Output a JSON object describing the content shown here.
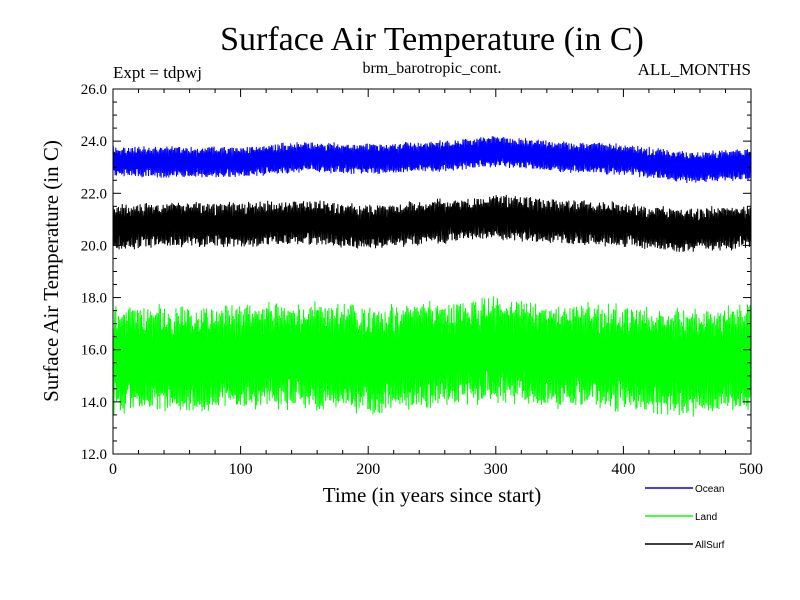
{
  "chart_data": {
    "type": "line",
    "title": "Surface Air Temperature (in C)",
    "subtitle_left": "Expt = tdpwj",
    "subtitle_center": "brm_barotropic_cont.",
    "subtitle_right": "ALL_MONTHS",
    "xlabel": "Time (in years since start)",
    "ylabel": "Surface Air Temperature (in C)",
    "xlim": [
      0,
      500
    ],
    "ylim": [
      12.0,
      26.0
    ],
    "xticks": [
      0,
      100,
      200,
      300,
      400,
      500
    ],
    "xtick_labels": [
      "0",
      "100",
      "200",
      "300",
      "400",
      "500"
    ],
    "yticks": [
      12.0,
      14.0,
      16.0,
      18.0,
      20.0,
      22.0,
      24.0,
      26.0
    ],
    "ytick_labels": [
      "12.0",
      "14.0",
      "16.0",
      "18.0",
      "20.0",
      "22.0",
      "24.0",
      "26.0"
    ],
    "legend_position": "bottom-right, below plot",
    "samples_per_year": 12,
    "series": [
      {
        "name": "Ocean",
        "color": "#0000ff",
        "mean_years": [
          0,
          50,
          100,
          150,
          200,
          250,
          300,
          350,
          400,
          450,
          500
        ],
        "mean_values": [
          23.2,
          23.2,
          23.2,
          23.4,
          23.3,
          23.4,
          23.6,
          23.4,
          23.3,
          23.0,
          23.1
        ],
        "half_range": 0.55
      },
      {
        "name": "Land",
        "color": "#00ff00",
        "mean_years": [
          0,
          50,
          100,
          150,
          200,
          250,
          300,
          350,
          400,
          450,
          500
        ],
        "mean_values": [
          15.6,
          15.7,
          15.7,
          15.8,
          15.6,
          15.8,
          16.0,
          15.8,
          15.7,
          15.5,
          15.7
        ],
        "half_range": 1.9
      },
      {
        "name": "AllSurf",
        "color": "#000000",
        "mean_years": [
          0,
          50,
          100,
          150,
          200,
          250,
          300,
          350,
          400,
          450,
          500
        ],
        "mean_values": [
          20.7,
          20.8,
          20.8,
          20.9,
          20.7,
          20.9,
          21.1,
          20.9,
          20.8,
          20.6,
          20.7
        ],
        "half_range": 0.8
      }
    ]
  }
}
